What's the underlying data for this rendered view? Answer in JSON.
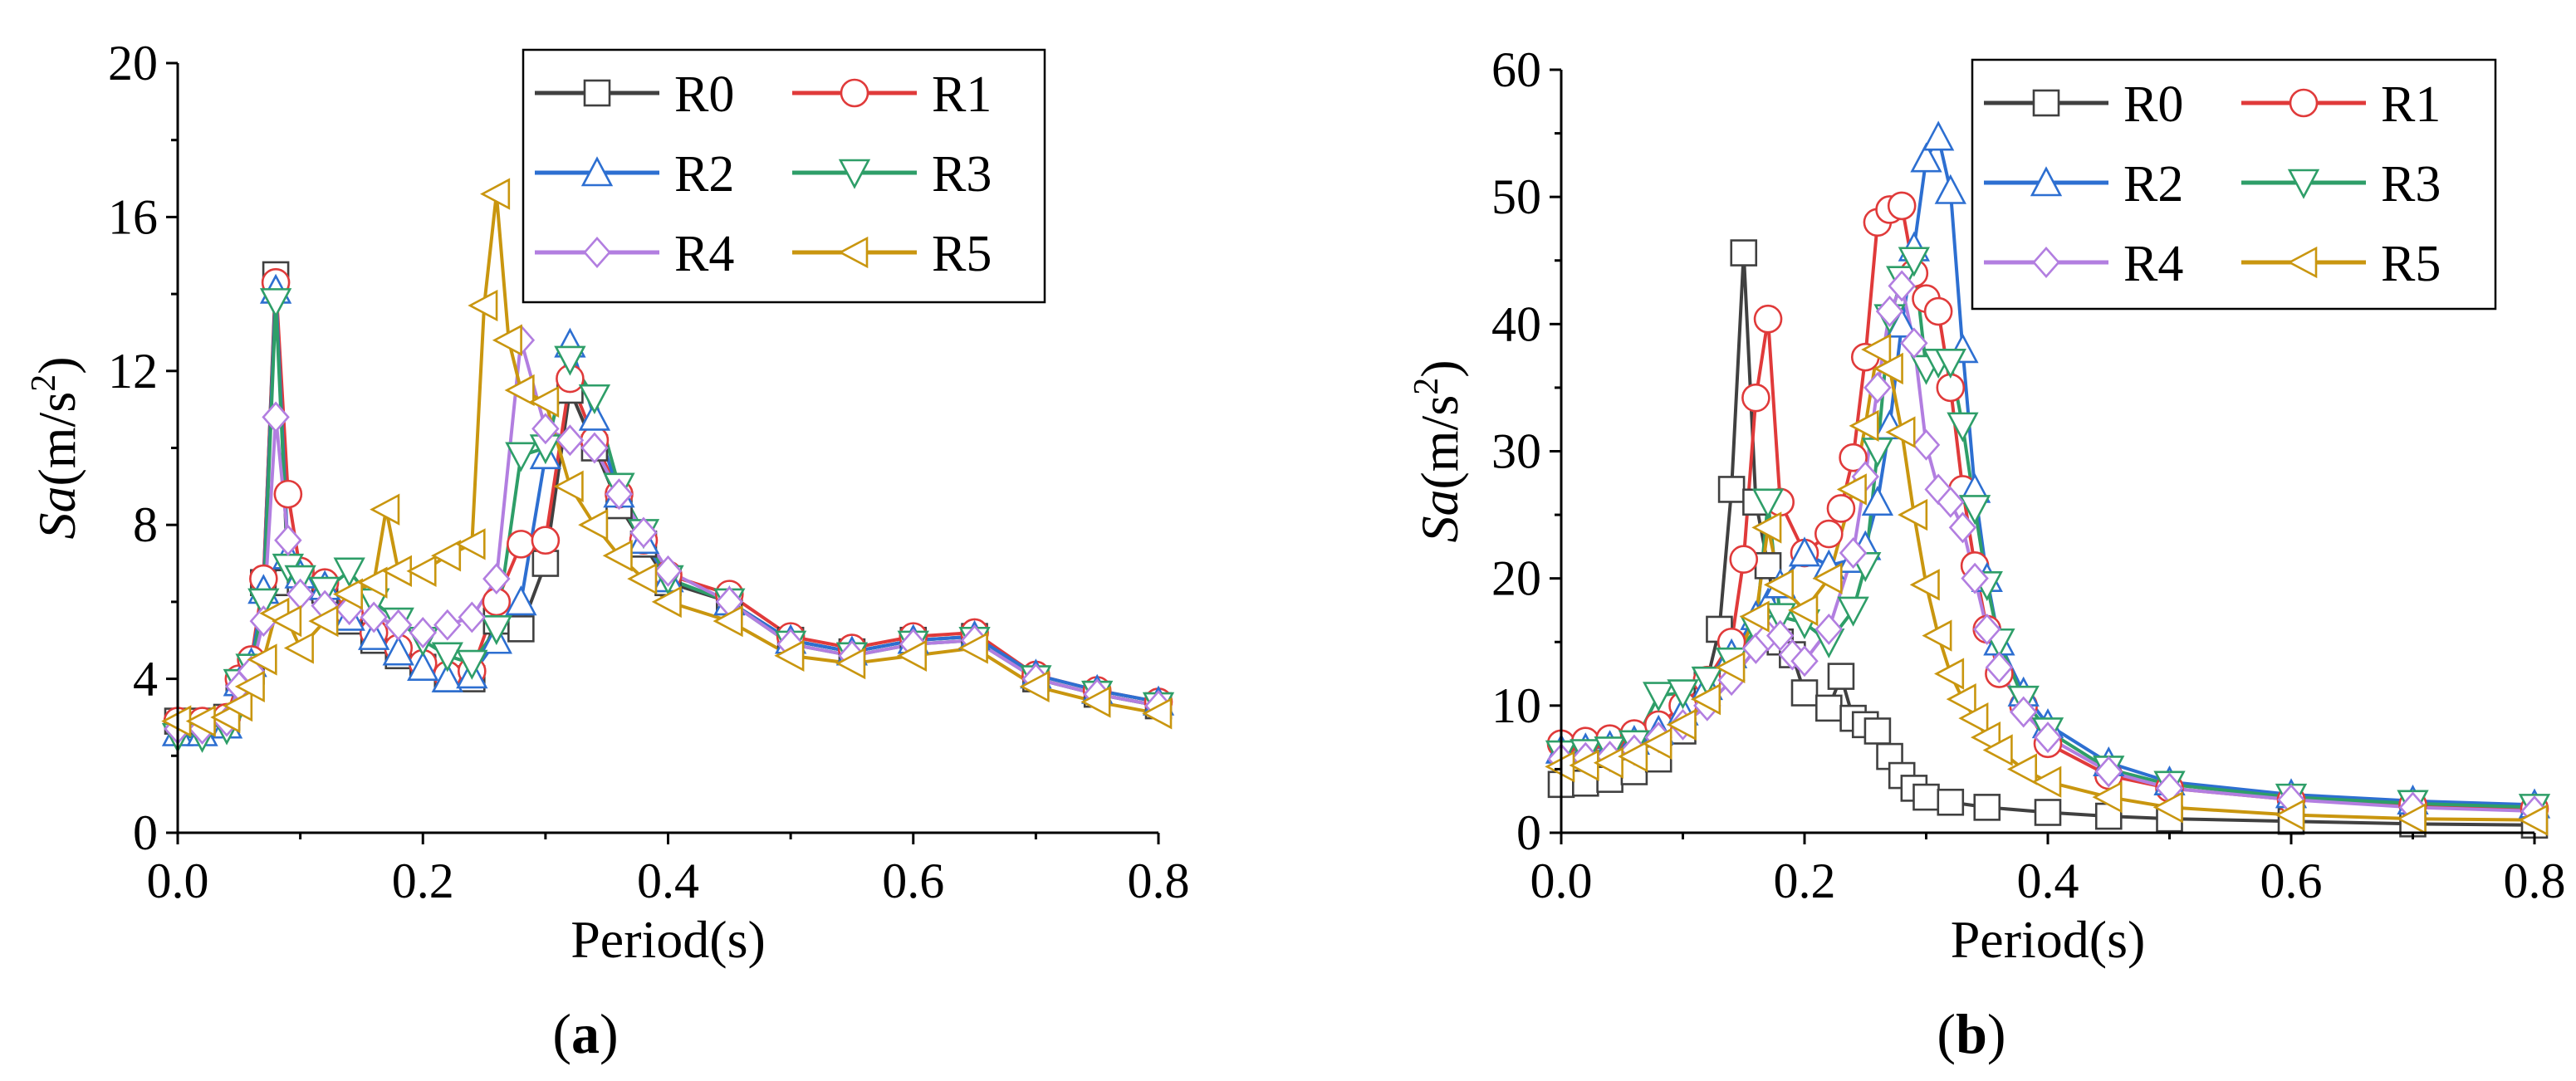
{
  "chart_data": [
    {
      "type": "line",
      "panel_label": "a",
      "xlabel": "Period(s)",
      "ylabel": {
        "italic": "Sa",
        "unit": "(m/s",
        "exp": "2",
        "close": ")"
      },
      "xlim": [
        0.0,
        0.8
      ],
      "ylim": [
        0,
        20
      ],
      "xticks": [
        0.0,
        0.2,
        0.4,
        0.6,
        0.8
      ],
      "xtick_labels": [
        "0.0",
        "0.2",
        "0.4",
        "0.6",
        "0.8"
      ],
      "yticks": [
        0,
        4,
        8,
        12,
        16,
        20
      ],
      "ytick_labels": [
        "0",
        "4",
        "8",
        "12",
        "16",
        "20"
      ],
      "legend_position": "top-right",
      "grid": false,
      "series": [
        {
          "name": "R0",
          "color": "#404040",
          "marker": "square",
          "x": [
            0,
            0.02,
            0.04,
            0.05,
            0.06,
            0.07,
            0.08,
            0.09,
            0.1,
            0.12,
            0.14,
            0.16,
            0.18,
            0.2,
            0.22,
            0.24,
            0.26,
            0.28,
            0.3,
            0.32,
            0.34,
            0.36,
            0.38,
            0.4,
            0.45,
            0.5,
            0.55,
            0.6,
            0.65,
            0.7,
            0.75,
            0.8
          ],
          "y": [
            2.9,
            2.9,
            3.0,
            3.9,
            4.2,
            6.5,
            14.5,
            6.5,
            6.5,
            6.3,
            5.5,
            5.0,
            4.6,
            4.3,
            4.0,
            4.0,
            5.5,
            5.3,
            7.0,
            11.5,
            10.0,
            8.5,
            7.5,
            6.5,
            6.0,
            5.0,
            4.7,
            5.0,
            5.1,
            4.0,
            3.6,
            3.3
          ]
        },
        {
          "name": "R1",
          "color": "#e03a3a",
          "marker": "circle",
          "x": [
            0,
            0.02,
            0.04,
            0.05,
            0.06,
            0.07,
            0.08,
            0.09,
            0.1,
            0.12,
            0.14,
            0.16,
            0.18,
            0.2,
            0.22,
            0.24,
            0.26,
            0.28,
            0.3,
            0.32,
            0.34,
            0.36,
            0.38,
            0.4,
            0.45,
            0.5,
            0.55,
            0.6,
            0.65,
            0.7,
            0.75,
            0.8
          ],
          "y": [
            2.9,
            2.9,
            3.0,
            4.0,
            4.5,
            6.6,
            14.3,
            8.8,
            6.8,
            6.5,
            5.7,
            5.2,
            4.8,
            4.4,
            4.1,
            4.2,
            6.0,
            7.5,
            7.6,
            11.8,
            10.2,
            8.8,
            7.6,
            6.7,
            6.2,
            5.1,
            4.8,
            5.1,
            5.2,
            4.1,
            3.7,
            3.4
          ]
        },
        {
          "name": "R2",
          "color": "#2d6fd1",
          "marker": "triangle-up",
          "x": [
            0,
            0.02,
            0.04,
            0.05,
            0.06,
            0.07,
            0.08,
            0.09,
            0.1,
            0.12,
            0.14,
            0.16,
            0.18,
            0.2,
            0.22,
            0.24,
            0.26,
            0.28,
            0.3,
            0.32,
            0.34,
            0.36,
            0.38,
            0.4,
            0.45,
            0.5,
            0.55,
            0.6,
            0.65,
            0.7,
            0.75,
            0.8
          ],
          "y": [
            2.6,
            2.6,
            2.8,
            3.9,
            4.4,
            6.3,
            14.1,
            7.2,
            6.7,
            6.4,
            5.6,
            5.1,
            4.7,
            4.3,
            4.0,
            4.1,
            5.0,
            6.0,
            9.8,
            12.7,
            10.8,
            8.8,
            7.6,
            6.6,
            6.0,
            5.0,
            4.7,
            5.0,
            5.1,
            4.1,
            3.7,
            3.4
          ]
        },
        {
          "name": "R3",
          "color": "#2e9e68",
          "marker": "triangle-down",
          "x": [
            0,
            0.02,
            0.04,
            0.05,
            0.06,
            0.07,
            0.08,
            0.09,
            0.1,
            0.12,
            0.14,
            0.16,
            0.18,
            0.2,
            0.22,
            0.24,
            0.26,
            0.28,
            0.3,
            0.32,
            0.34,
            0.36,
            0.38,
            0.4,
            0.45,
            0.5,
            0.55,
            0.6,
            0.65,
            0.7,
            0.75,
            0.8
          ],
          "y": [
            2.5,
            2.5,
            2.7,
            3.9,
            4.3,
            6.0,
            13.8,
            6.9,
            6.6,
            6.3,
            6.8,
            6.0,
            5.5,
            5.0,
            4.6,
            4.4,
            5.3,
            9.8,
            10.0,
            12.3,
            11.3,
            9.0,
            7.8,
            6.6,
            6.0,
            4.9,
            4.6,
            4.9,
            5.0,
            4.0,
            3.6,
            3.3
          ]
        },
        {
          "name": "R4",
          "color": "#b27ee0",
          "marker": "diamond",
          "x": [
            0,
            0.02,
            0.04,
            0.05,
            0.06,
            0.07,
            0.08,
            0.09,
            0.1,
            0.12,
            0.14,
            0.16,
            0.18,
            0.2,
            0.22,
            0.24,
            0.26,
            0.28,
            0.3,
            0.32,
            0.34,
            0.36,
            0.38,
            0.4,
            0.45,
            0.5,
            0.55,
            0.6,
            0.65,
            0.7,
            0.75,
            0.8
          ],
          "y": [
            2.7,
            2.7,
            2.9,
            3.8,
            4.2,
            5.5,
            10.8,
            7.6,
            6.2,
            5.9,
            5.8,
            5.6,
            5.4,
            5.2,
            5.4,
            5.6,
            6.6,
            12.8,
            10.5,
            10.2,
            10.0,
            8.8,
            7.8,
            6.8,
            6.0,
            4.9,
            4.6,
            4.9,
            5.0,
            4.0,
            3.6,
            3.3
          ]
        },
        {
          "name": "R5",
          "color": "#c9960f",
          "marker": "triangle-left",
          "x": [
            0,
            0.02,
            0.04,
            0.05,
            0.06,
            0.07,
            0.08,
            0.09,
            0.1,
            0.12,
            0.14,
            0.16,
            0.17,
            0.18,
            0.2,
            0.22,
            0.24,
            0.25,
            0.26,
            0.27,
            0.28,
            0.3,
            0.32,
            0.34,
            0.36,
            0.38,
            0.4,
            0.45,
            0.5,
            0.55,
            0.6,
            0.65,
            0.7,
            0.75,
            0.8
          ],
          "y": [
            2.9,
            2.9,
            3.0,
            3.3,
            3.8,
            4.5,
            5.7,
            5.5,
            4.8,
            5.5,
            6.2,
            6.5,
            8.4,
            6.8,
            6.8,
            7.2,
            7.5,
            13.7,
            16.6,
            12.8,
            11.5,
            11.2,
            9.0,
            8.0,
            7.2,
            6.6,
            6.0,
            5.5,
            4.6,
            4.4,
            4.6,
            4.8,
            3.8,
            3.4,
            3.1
          ]
        }
      ]
    },
    {
      "type": "line",
      "panel_label": "b",
      "xlabel": "Period(s)",
      "ylabel": {
        "italic": "Sa",
        "unit": "(m/s",
        "exp": "2",
        "close": ")"
      },
      "xlim": [
        0.0,
        0.8
      ],
      "ylim": [
        0,
        60
      ],
      "xticks": [
        0.0,
        0.2,
        0.4,
        0.6,
        0.8
      ],
      "xtick_labels": [
        "0.0",
        "0.2",
        "0.4",
        "0.6",
        "0.8"
      ],
      "yticks": [
        0,
        10,
        20,
        30,
        40,
        50,
        60
      ],
      "ytick_labels": [
        "0",
        "10",
        "20",
        "30",
        "40",
        "50",
        "60"
      ],
      "legend_position": "top-right",
      "grid": false,
      "series": [
        {
          "name": "R0",
          "color": "#404040",
          "marker": "square",
          "x": [
            0,
            0.02,
            0.04,
            0.06,
            0.08,
            0.1,
            0.12,
            0.13,
            0.14,
            0.15,
            0.16,
            0.17,
            0.18,
            0.19,
            0.2,
            0.22,
            0.23,
            0.24,
            0.25,
            0.26,
            0.27,
            0.28,
            0.29,
            0.3,
            0.32,
            0.35,
            0.4,
            0.45,
            0.5,
            0.6,
            0.7,
            0.8
          ],
          "y": [
            3.8,
            3.9,
            4.2,
            4.8,
            5.8,
            8.0,
            12.0,
            16.0,
            27.0,
            45.6,
            26.0,
            21.0,
            15.0,
            14.0,
            11.0,
            9.8,
            12.3,
            9.0,
            8.5,
            8.0,
            6.0,
            4.5,
            3.5,
            2.8,
            2.4,
            2.0,
            1.6,
            1.3,
            1.1,
            0.9,
            0.7,
            0.6
          ]
        },
        {
          "name": "R1",
          "color": "#e03a3a",
          "marker": "circle",
          "x": [
            0,
            0.02,
            0.04,
            0.06,
            0.08,
            0.1,
            0.12,
            0.14,
            0.15,
            0.16,
            0.17,
            0.18,
            0.2,
            0.22,
            0.23,
            0.24,
            0.25,
            0.26,
            0.27,
            0.28,
            0.29,
            0.3,
            0.31,
            0.32,
            0.33,
            0.34,
            0.35,
            0.36,
            0.38,
            0.4,
            0.45,
            0.5,
            0.6,
            0.7,
            0.8
          ],
          "y": [
            7.0,
            7.2,
            7.4,
            7.8,
            8.5,
            10.0,
            12.0,
            15.0,
            21.5,
            34.2,
            40.4,
            26.0,
            22.0,
            23.5,
            25.5,
            29.5,
            37.4,
            48.0,
            49.0,
            49.3,
            44.0,
            42.0,
            41.0,
            35.0,
            27.0,
            21.0,
            16.0,
            12.5,
            10.0,
            7.0,
            4.5,
            3.5,
            2.6,
            2.2,
            1.9
          ]
        },
        {
          "name": "R2",
          "color": "#2d6fd1",
          "marker": "triangle-up",
          "x": [
            0,
            0.02,
            0.04,
            0.06,
            0.08,
            0.1,
            0.12,
            0.14,
            0.16,
            0.17,
            0.18,
            0.2,
            0.22,
            0.24,
            0.25,
            0.26,
            0.27,
            0.28,
            0.29,
            0.3,
            0.31,
            0.32,
            0.33,
            0.34,
            0.35,
            0.36,
            0.38,
            0.4,
            0.45,
            0.5,
            0.6,
            0.7,
            0.8
          ],
          "y": [
            6.5,
            6.6,
            6.8,
            7.2,
            8.0,
            9.5,
            11.5,
            14.0,
            17.0,
            18.0,
            19.5,
            22.0,
            21.0,
            21.5,
            22.5,
            26.0,
            32.0,
            40.0,
            46.0,
            53.0,
            54.7,
            50.5,
            38.0,
            27.0,
            20.0,
            15.0,
            11.0,
            8.5,
            5.5,
            4.0,
            3.0,
            2.5,
            2.2
          ]
        },
        {
          "name": "R3",
          "color": "#2e9e68",
          "marker": "triangle-down",
          "x": [
            0,
            0.02,
            0.04,
            0.06,
            0.08,
            0.1,
            0.12,
            0.14,
            0.16,
            0.17,
            0.18,
            0.2,
            0.22,
            0.24,
            0.25,
            0.26,
            0.27,
            0.28,
            0.29,
            0.3,
            0.31,
            0.32,
            0.33,
            0.34,
            0.35,
            0.36,
            0.38,
            0.4,
            0.45,
            0.5,
            0.6,
            0.7,
            0.8
          ],
          "y": [
            6.2,
            6.3,
            6.5,
            7.0,
            10.8,
            11.0,
            12.0,
            13.5,
            16.0,
            26.0,
            17.0,
            16.5,
            15.0,
            17.5,
            21.0,
            30.0,
            40.5,
            43.5,
            45.0,
            36.5,
            37.0,
            37.0,
            32.0,
            25.5,
            19.5,
            15.0,
            10.5,
            8.0,
            5.0,
            3.8,
            2.8,
            2.3,
            2.0
          ]
        },
        {
          "name": "R4",
          "color": "#b27ee0",
          "marker": "diamond",
          "x": [
            0,
            0.02,
            0.04,
            0.06,
            0.08,
            0.1,
            0.12,
            0.14,
            0.16,
            0.17,
            0.18,
            0.19,
            0.2,
            0.22,
            0.24,
            0.25,
            0.26,
            0.27,
            0.28,
            0.29,
            0.3,
            0.31,
            0.32,
            0.33,
            0.34,
            0.35,
            0.36,
            0.38,
            0.4,
            0.45,
            0.5,
            0.6,
            0.7,
            0.8
          ],
          "y": [
            5.8,
            5.9,
            6.0,
            6.5,
            7.5,
            8.5,
            10.0,
            12.0,
            14.5,
            15.5,
            15.5,
            14.0,
            13.5,
            16.0,
            22.0,
            28.0,
            35.0,
            41.0,
            43.0,
            38.5,
            30.5,
            27.0,
            26.0,
            24.0,
            20.0,
            16.0,
            13.0,
            9.5,
            7.5,
            4.8,
            3.5,
            2.6,
            2.0,
            1.7
          ]
        },
        {
          "name": "R5",
          "color": "#c9960f",
          "marker": "triangle-left",
          "x": [
            0,
            0.02,
            0.04,
            0.06,
            0.08,
            0.1,
            0.12,
            0.14,
            0.16,
            0.17,
            0.18,
            0.2,
            0.22,
            0.24,
            0.25,
            0.26,
            0.27,
            0.28,
            0.29,
            0.3,
            0.31,
            0.32,
            0.33,
            0.34,
            0.35,
            0.36,
            0.38,
            0.4,
            0.45,
            0.5,
            0.6,
            0.7,
            0.8
          ],
          "y": [
            5.2,
            5.3,
            5.5,
            6.0,
            7.0,
            8.5,
            10.5,
            13.0,
            17.0,
            24.0,
            19.5,
            17.5,
            20.0,
            27.0,
            32.0,
            38.0,
            36.5,
            31.5,
            25.0,
            19.5,
            15.5,
            12.5,
            10.5,
            9.0,
            7.5,
            6.5,
            5.0,
            4.0,
            2.8,
            2.0,
            1.4,
            1.1,
            1.0
          ]
        }
      ]
    }
  ]
}
